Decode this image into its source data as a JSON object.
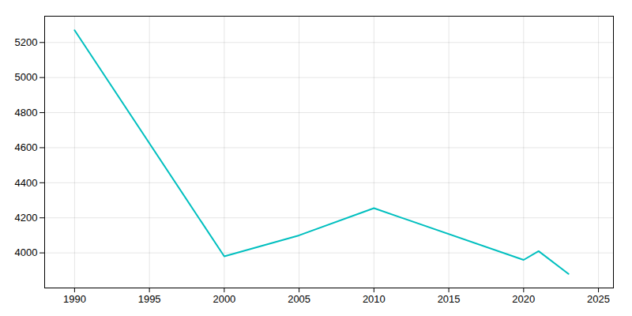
{
  "chart_data": {
    "type": "line",
    "x": [
      1990,
      2000,
      2005,
      2010,
      2020,
      2021,
      2023
    ],
    "values": [
      5270,
      3980,
      4100,
      4255,
      3960,
      4010,
      3880
    ],
    "color": "#00BFBF",
    "xlim": [
      1988,
      2026
    ],
    "ylim": [
      3800,
      5350
    ],
    "xticks": [
      1990,
      1995,
      2000,
      2005,
      2010,
      2015,
      2020,
      2025
    ],
    "yticks": [
      4000,
      4200,
      4400,
      4600,
      4800,
      5000,
      5200
    ],
    "grid": true
  }
}
